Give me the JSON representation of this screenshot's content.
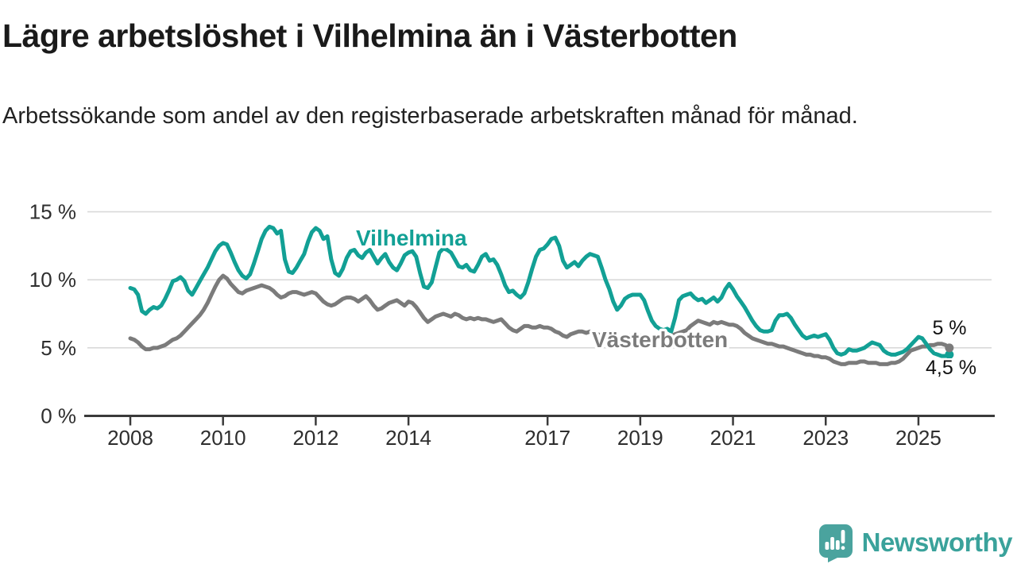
{
  "header": {
    "title": "Lägre arbetslöshet i Vilhelmina än i Västerbotten",
    "subtitle": "Arbetssökande som andel av den registerbaserade arbetskraften månad för månad."
  },
  "chart_data": {
    "type": "line",
    "unit": "%",
    "frequency": "monthly",
    "x_start": "2008-01",
    "x_end": "2025-09",
    "grid": "horizontal",
    "ylim": [
      0,
      15.5
    ],
    "yticks": [
      0,
      5,
      10,
      15
    ],
    "ytick_labels": [
      "0 %",
      "5 %",
      "10 %",
      "15 %"
    ],
    "xticks": [
      2008,
      2010,
      2012,
      2014,
      2017,
      2019,
      2021,
      2023,
      2025
    ],
    "xtick_labels": [
      "2008",
      "2010",
      "2012",
      "2014",
      "2017",
      "2019",
      "2021",
      "2023",
      "2025"
    ],
    "colors": {
      "vilhelmina": "#12a095",
      "vasterbotten": "#7b7b7b",
      "grid": "#d9d9d9",
      "axis": "#3a3a3a",
      "tick_text": "#2e2e2e",
      "end_label_text": "#111111"
    },
    "series": [
      {
        "name": "Vilhelmina",
        "color": "#12a095",
        "end_label": "4,5 %",
        "end_value": 4.5,
        "values": [
          9.4,
          9.3,
          8.9,
          7.7,
          7.5,
          7.8,
          8.0,
          7.9,
          8.1,
          8.6,
          9.2,
          9.9,
          10.0,
          10.2,
          9.9,
          9.2,
          8.9,
          9.4,
          9.9,
          10.4,
          10.9,
          11.5,
          12.1,
          12.5,
          12.7,
          12.6,
          12.0,
          11.3,
          10.7,
          10.3,
          10.1,
          10.4,
          11.2,
          12.1,
          13.0,
          13.6,
          13.9,
          13.8,
          13.4,
          13.6,
          11.5,
          10.6,
          10.5,
          10.9,
          11.4,
          11.9,
          12.8,
          13.5,
          13.8,
          13.6,
          13.0,
          13.2,
          11.5,
          10.5,
          10.3,
          10.8,
          11.6,
          12.1,
          12.2,
          11.8,
          11.6,
          12.0,
          12.2,
          11.7,
          11.2,
          11.6,
          11.9,
          11.3,
          10.9,
          10.7,
          11.2,
          11.8,
          12.0,
          12.1,
          11.7,
          10.5,
          9.5,
          9.4,
          9.8,
          10.9,
          12.0,
          12.3,
          12.2,
          12.0,
          11.5,
          11.0,
          10.9,
          11.1,
          10.7,
          10.6,
          11.1,
          11.7,
          11.9,
          11.4,
          11.5,
          11.1,
          10.4,
          9.6,
          9.1,
          9.2,
          8.9,
          8.7,
          9.0,
          9.8,
          10.8,
          11.7,
          12.2,
          12.3,
          12.6,
          13.0,
          13.1,
          12.5,
          11.4,
          10.9,
          11.1,
          11.3,
          11.0,
          11.4,
          11.7,
          11.9,
          11.8,
          11.7,
          10.9,
          10.0,
          9.3,
          8.4,
          7.8,
          8.1,
          8.6,
          8.8,
          8.9,
          8.9,
          8.9,
          8.5,
          7.7,
          7.0,
          6.6,
          6.4,
          6.3,
          6.4,
          6.2,
          7.2,
          8.5,
          8.8,
          8.9,
          9.0,
          8.7,
          8.5,
          8.6,
          8.3,
          8.5,
          8.7,
          8.4,
          8.7,
          9.3,
          9.7,
          9.3,
          8.8,
          8.4,
          8.0,
          7.5,
          7.0,
          6.6,
          6.3,
          6.2,
          6.2,
          6.3,
          7.0,
          7.4,
          7.4,
          7.5,
          7.2,
          6.7,
          6.3,
          5.9,
          5.7,
          5.8,
          5.9,
          5.8,
          5.9,
          6.0,
          5.6,
          5.0,
          4.6,
          4.5,
          4.6,
          4.9,
          4.8,
          4.8,
          4.9,
          5.0,
          5.2,
          5.4,
          5.3,
          5.2,
          4.8,
          4.6,
          4.5,
          4.5,
          4.6,
          4.7,
          4.9,
          5.2,
          5.5,
          5.8,
          5.7,
          5.3,
          4.9,
          4.6,
          4.5,
          4.4,
          4.4,
          4.5
        ]
      },
      {
        "name": "Västerbotten",
        "color": "#7b7b7b",
        "end_label": "5 %",
        "end_value": 5.0,
        "values": [
          5.7,
          5.6,
          5.4,
          5.1,
          4.9,
          4.9,
          5.0,
          5.0,
          5.1,
          5.2,
          5.4,
          5.6,
          5.7,
          5.9,
          6.2,
          6.5,
          6.8,
          7.1,
          7.4,
          7.8,
          8.3,
          8.9,
          9.5,
          10.0,
          10.3,
          10.1,
          9.7,
          9.4,
          9.1,
          9.0,
          9.2,
          9.3,
          9.4,
          9.5,
          9.6,
          9.5,
          9.4,
          9.2,
          8.9,
          8.7,
          8.8,
          9.0,
          9.1,
          9.1,
          9.0,
          8.9,
          9.0,
          9.1,
          9.0,
          8.7,
          8.4,
          8.2,
          8.1,
          8.2,
          8.4,
          8.6,
          8.7,
          8.7,
          8.6,
          8.4,
          8.6,
          8.8,
          8.5,
          8.1,
          7.8,
          7.9,
          8.1,
          8.3,
          8.4,
          8.5,
          8.3,
          8.1,
          8.4,
          8.3,
          8.0,
          7.6,
          7.2,
          6.9,
          7.1,
          7.3,
          7.4,
          7.5,
          7.4,
          7.3,
          7.5,
          7.4,
          7.2,
          7.1,
          7.2,
          7.1,
          7.2,
          7.1,
          7.1,
          7.0,
          6.9,
          7.0,
          7.1,
          6.8,
          6.5,
          6.3,
          6.2,
          6.4,
          6.6,
          6.6,
          6.5,
          6.5,
          6.6,
          6.5,
          6.5,
          6.4,
          6.2,
          6.1,
          5.9,
          5.8,
          6.0,
          6.1,
          6.2,
          6.2,
          6.1,
          6.2,
          6.1,
          6.0,
          5.9,
          5.8,
          5.7,
          5.6,
          5.7,
          5.8,
          5.8,
          5.9,
          5.9,
          5.8,
          5.9,
          5.8,
          5.7,
          5.6,
          5.6,
          5.7,
          5.7,
          5.8,
          5.9,
          6.0,
          6.1,
          6.2,
          6.3,
          6.6,
          6.8,
          7.0,
          6.9,
          6.8,
          6.7,
          6.9,
          6.8,
          6.9,
          6.8,
          6.7,
          6.7,
          6.6,
          6.4,
          6.1,
          5.9,
          5.7,
          5.6,
          5.5,
          5.4,
          5.3,
          5.3,
          5.2,
          5.1,
          5.1,
          5.0,
          4.9,
          4.8,
          4.7,
          4.6,
          4.5,
          4.5,
          4.4,
          4.4,
          4.3,
          4.3,
          4.2,
          4.0,
          3.9,
          3.8,
          3.8,
          3.9,
          3.9,
          3.9,
          4.0,
          4.0,
          3.9,
          3.9,
          3.9,
          3.8,
          3.8,
          3.8,
          3.9,
          3.9,
          4.0,
          4.2,
          4.5,
          4.8,
          4.9,
          5.0,
          5.1,
          5.1,
          5.2,
          5.2,
          5.3,
          5.3,
          5.2,
          5.0
        ]
      }
    ]
  },
  "branding": {
    "logo_text": "Newsworthy",
    "logo_icon": "bar-chart-speech-bubble-icon",
    "logo_color": "#4aa39e"
  }
}
